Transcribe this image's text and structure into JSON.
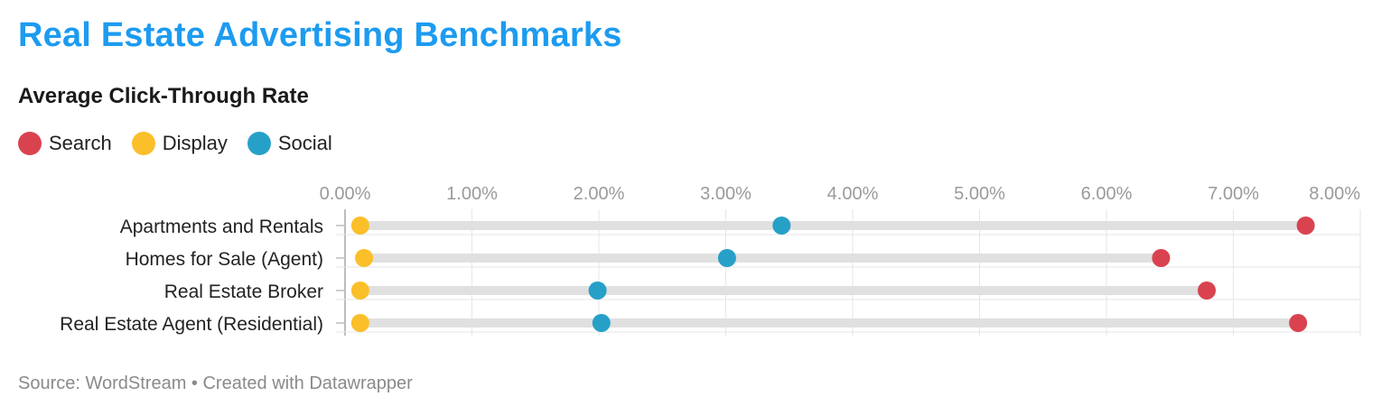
{
  "header": {
    "title": "Real Estate Advertising Benchmarks",
    "subtitle": "Average Click-Through Rate"
  },
  "legend": [
    {
      "label": "Search",
      "color": "#d9434f"
    },
    {
      "label": "Display",
      "color": "#fbbf2a"
    },
    {
      "label": "Social",
      "color": "#27a0c8"
    }
  ],
  "footer": {
    "source": "Source: WordStream • Created with Datawrapper"
  },
  "colors": {
    "title": "#1d9bf0",
    "bar": "#e0e0e0",
    "grid": "#e6e6e6"
  },
  "chart_data": {
    "type": "dot-range",
    "title": "Real Estate Advertising Benchmarks",
    "subtitle": "Average Click-Through Rate",
    "xlim": [
      0,
      8
    ],
    "ticks": [
      0,
      1,
      2,
      3,
      4,
      5,
      6,
      7,
      8
    ],
    "tick_labels": [
      "0.00%",
      "1.00%",
      "2.00%",
      "3.00%",
      "4.00%",
      "5.00%",
      "6.00%",
      "7.00%",
      "8.00%"
    ],
    "categories": [
      "Apartments and Rentals",
      "Homes for Sale (Agent)",
      "Real Estate Broker",
      "Real Estate Agent (Residential)"
    ],
    "series": [
      {
        "name": "Search",
        "color": "#d9434f",
        "values": [
          7.57,
          6.43,
          6.79,
          7.51
        ]
      },
      {
        "name": "Display",
        "color": "#fbbf2a",
        "values": [
          0.12,
          0.15,
          0.12,
          0.12
        ]
      },
      {
        "name": "Social",
        "color": "#27a0c8",
        "values": [
          3.44,
          3.01,
          1.99,
          2.02
        ]
      }
    ],
    "grid": true,
    "legend_position": "top-left"
  }
}
